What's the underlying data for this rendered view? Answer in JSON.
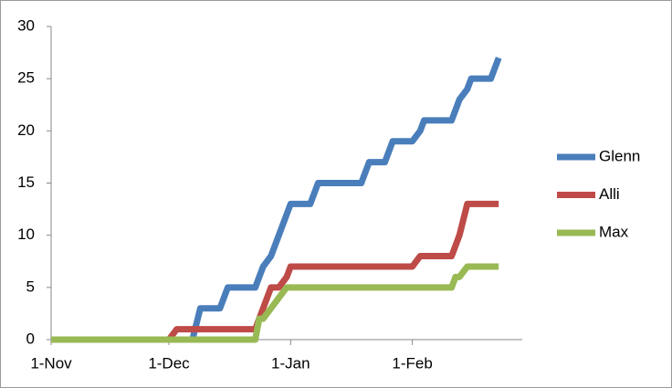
{
  "chart_data": {
    "type": "line",
    "x": [
      0,
      30,
      32,
      36,
      38,
      43,
      45,
      52,
      53,
      54,
      56,
      58,
      60,
      61,
      66,
      68,
      79,
      81,
      85,
      87,
      92,
      94,
      95,
      102,
      103,
      104,
      106,
      107,
      112,
      114
    ],
    "series": [
      {
        "name": "Glenn",
        "color": "#4a7ebb",
        "values": [
          0,
          0,
          0,
          0,
          3,
          3,
          5,
          5,
          6,
          7,
          8,
          10,
          12,
          13,
          13,
          15,
          15,
          17,
          17,
          19,
          19,
          20,
          21,
          21,
          22,
          23,
          24,
          25,
          25,
          27
        ]
      },
      {
        "name": "Alli",
        "color": "#be4b48",
        "values": [
          0,
          0,
          1,
          1,
          1,
          1,
          1,
          1,
          2,
          3,
          5,
          5,
          6,
          7,
          7,
          7,
          7,
          7,
          7,
          7,
          7,
          8,
          8,
          8,
          9,
          10,
          13,
          13,
          13,
          13
        ]
      },
      {
        "name": "Max",
        "color": "#98b954",
        "values": [
          0,
          0,
          0,
          0,
          0,
          0,
          0,
          0,
          2,
          2,
          3,
          4,
          5,
          5,
          5,
          5,
          5,
          5,
          5,
          5,
          5,
          5,
          5,
          5,
          6,
          6,
          7,
          7,
          7,
          7
        ]
      }
    ],
    "xlim": [
      0,
      120
    ],
    "xticks": [
      {
        "value": 0,
        "label": "1-Nov"
      },
      {
        "value": 30,
        "label": "1-Dec"
      },
      {
        "value": 61,
        "label": "1-Jan"
      },
      {
        "value": 92,
        "label": "1-Feb"
      }
    ],
    "ylim": [
      0,
      30
    ],
    "yticks": [
      0,
      5,
      10,
      15,
      20,
      25,
      30
    ],
    "grid": false,
    "legend": "right"
  }
}
